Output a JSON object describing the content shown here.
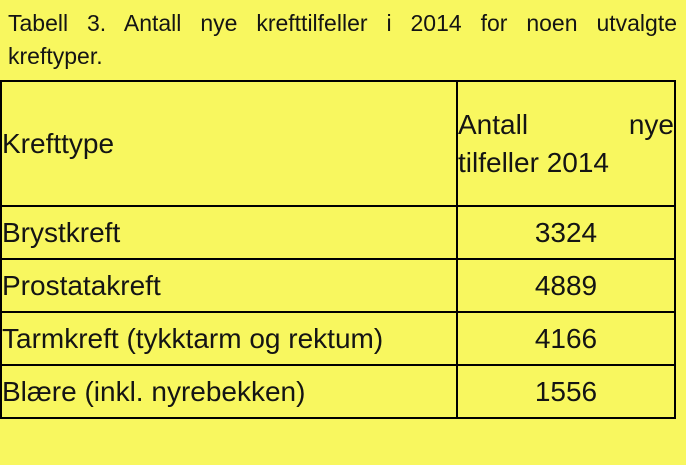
{
  "colors": {
    "background": "#F8F75F",
    "border": "#000000",
    "text": "#141414"
  },
  "caption": {
    "full": "Tabell 3. Antall nye krefttilfeller i 2014 for noen utvalgte kreftyper.",
    "line1": "Tabell 3. Antall nye krefttilfeller i 2014 for noen utvalgte",
    "line2": "kreftyper."
  },
  "table": {
    "col1_header": "Krefttype",
    "col2_header": "Antall nye tilfeller 2014",
    "col2_header_line1": "Antall nye",
    "col2_header_line2": "tilfeller 2014",
    "rows": [
      {
        "label": "Brystkreft",
        "value": "3324"
      },
      {
        "label": "Prostatakreft",
        "value": "4889"
      },
      {
        "label": "Tarmkreft (tykktarm og rektum)",
        "value": "4166"
      },
      {
        "label": "Blære (inkl. nyrebekken)",
        "value": "1556"
      }
    ]
  },
  "chart_data": {
    "type": "table",
    "title": "Tabell 3. Antall nye krefttilfeller i 2014 for noen utvalgte kreftyper.",
    "columns": [
      "Krefttype",
      "Antall nye tilfeller 2014"
    ],
    "categories": [
      "Brystkreft",
      "Prostatakreft",
      "Tarmkreft (tykktarm og rektum)",
      "Blære (inkl. nyrebekken)"
    ],
    "values": [
      3324,
      4889,
      4166,
      1556
    ]
  }
}
